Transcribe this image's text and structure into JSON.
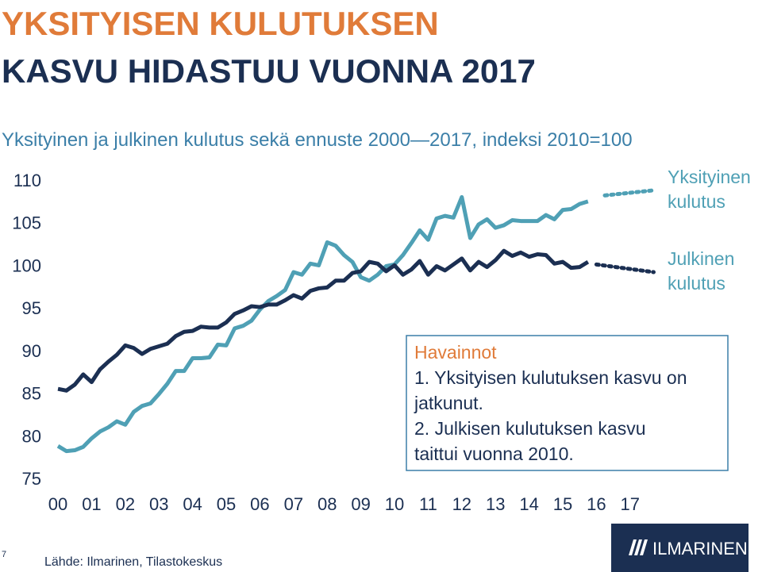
{
  "chart_data": {
    "type": "line",
    "title": [
      "YKSITYISEN KULUTUKSEN",
      "KASVU HIDASTUU VUONNA 2017"
    ],
    "subtitle": "Yksityinen ja julkinen kulutus sekä ennuste 2000—2017, indeksi 2010=100",
    "x": [
      2000,
      2000.25,
      2000.5,
      2000.75,
      2001,
      2001.25,
      2001.5,
      2001.75,
      2002,
      2002.25,
      2002.5,
      2002.75,
      2003,
      2003.25,
      2003.5,
      2003.75,
      2004,
      2004.25,
      2004.5,
      2004.75,
      2005,
      2005.25,
      2005.5,
      2005.75,
      2006,
      2006.25,
      2006.5,
      2006.75,
      2007,
      2007.25,
      2007.5,
      2007.75,
      2008,
      2008.25,
      2008.5,
      2008.75,
      2009,
      2009.25,
      2009.5,
      2009.75,
      2010,
      2010.25,
      2010.5,
      2010.75,
      2011,
      2011.25,
      2011.5,
      2011.75,
      2012,
      2012.25,
      2012.5,
      2012.75,
      2013,
      2013.25,
      2013.5,
      2013.75,
      2014,
      2014.25,
      2014.5,
      2014.75,
      2015,
      2015.25,
      2015.5,
      2015.75
    ],
    "series": [
      {
        "label_lines": [
          "Yksityinen",
          "kulutus"
        ],
        "color": "#4fa0b5",
        "values": [
          78.8,
          78.2,
          78.3,
          78.7,
          79.7,
          80.5,
          81.0,
          81.7,
          81.3,
          82.8,
          83.5,
          83.8,
          84.9,
          86.1,
          87.6,
          87.6,
          89.1,
          89.1,
          89.2,
          90.7,
          90.6,
          92.6,
          92.9,
          93.5,
          94.8,
          95.8,
          96.4,
          97.1,
          99.2,
          98.9,
          100.2,
          100.0,
          102.7,
          102.3,
          101.2,
          100.4,
          98.6,
          98.2,
          98.9,
          99.9,
          100.1,
          101.2,
          102.6,
          104.1,
          103.0,
          105.5,
          105.8,
          105.6,
          108.0,
          103.2,
          104.8,
          105.4,
          104.4,
          104.7,
          105.3,
          105.2,
          105.2,
          105.2,
          105.9,
          105.4,
          106.5,
          106.6,
          107.2,
          107.5
        ],
        "forecast_x": [
          2016.25,
          2017.7
        ],
        "forecast_values": [
          108.2,
          108.8
        ]
      },
      {
        "label_lines": [
          "Julkinen",
          "kulutus"
        ],
        "color": "#1b2f52",
        "values": [
          85.5,
          85.3,
          86.0,
          87.2,
          86.3,
          87.8,
          88.7,
          89.5,
          90.6,
          90.3,
          89.6,
          90.2,
          90.5,
          90.8,
          91.7,
          92.2,
          92.3,
          92.8,
          92.7,
          92.7,
          93.3,
          94.3,
          94.7,
          95.2,
          95.1,
          95.4,
          95.4,
          95.9,
          96.5,
          96.1,
          97.0,
          97.3,
          97.4,
          98.2,
          98.2,
          99.1,
          99.3,
          100.4,
          100.2,
          99.3,
          100.0,
          98.9,
          99.5,
          100.5,
          98.9,
          99.9,
          99.4,
          100.1,
          100.8,
          99.4,
          100.4,
          99.8,
          100.6,
          101.7,
          101.1,
          101.5,
          101.0,
          101.3,
          101.2,
          100.2,
          100.4,
          99.7,
          99.8,
          100.4
        ],
        "forecast_x": [
          2016.0,
          2017.7
        ],
        "forecast_values": [
          100.1,
          99.2
        ]
      }
    ],
    "xlim": [
      1999.9,
      2017.5
    ],
    "xticks": [
      {
        "value": 2000,
        "label": "00"
      },
      {
        "value": 2001,
        "label": "01"
      },
      {
        "value": 2002,
        "label": "02"
      },
      {
        "value": 2003,
        "label": "03"
      },
      {
        "value": 2004,
        "label": "04"
      },
      {
        "value": 2005,
        "label": "05"
      },
      {
        "value": 2006,
        "label": "06"
      },
      {
        "value": 2007,
        "label": "07"
      },
      {
        "value": 2008,
        "label": "08"
      },
      {
        "value": 2009,
        "label": "09"
      },
      {
        "value": 2010,
        "label": "10"
      },
      {
        "value": 2011,
        "label": "11"
      },
      {
        "value": 2012,
        "label": "12"
      },
      {
        "value": 2013,
        "label": "13"
      },
      {
        "value": 2014,
        "label": "14"
      },
      {
        "value": 2015,
        "label": "15"
      },
      {
        "value": 2016,
        "label": "16"
      },
      {
        "value": 2017,
        "label": "17"
      }
    ],
    "ylim": [
      75,
      110
    ],
    "yticks": [
      75,
      80,
      85,
      90,
      95,
      100,
      105,
      110
    ],
    "grid": false,
    "note": {
      "title": "Havainnot",
      "lines": [
        "1. Yksityisen kulutuksen kasvu on",
        "jatkunut.",
        "2. Julkisen kulutuksen kasvu",
        "taittui vuonna 2010."
      ]
    },
    "page_number": "7",
    "source": "Lähde: Ilmarinen, Tilastokeskus",
    "logo": "ILMARINEN"
  }
}
